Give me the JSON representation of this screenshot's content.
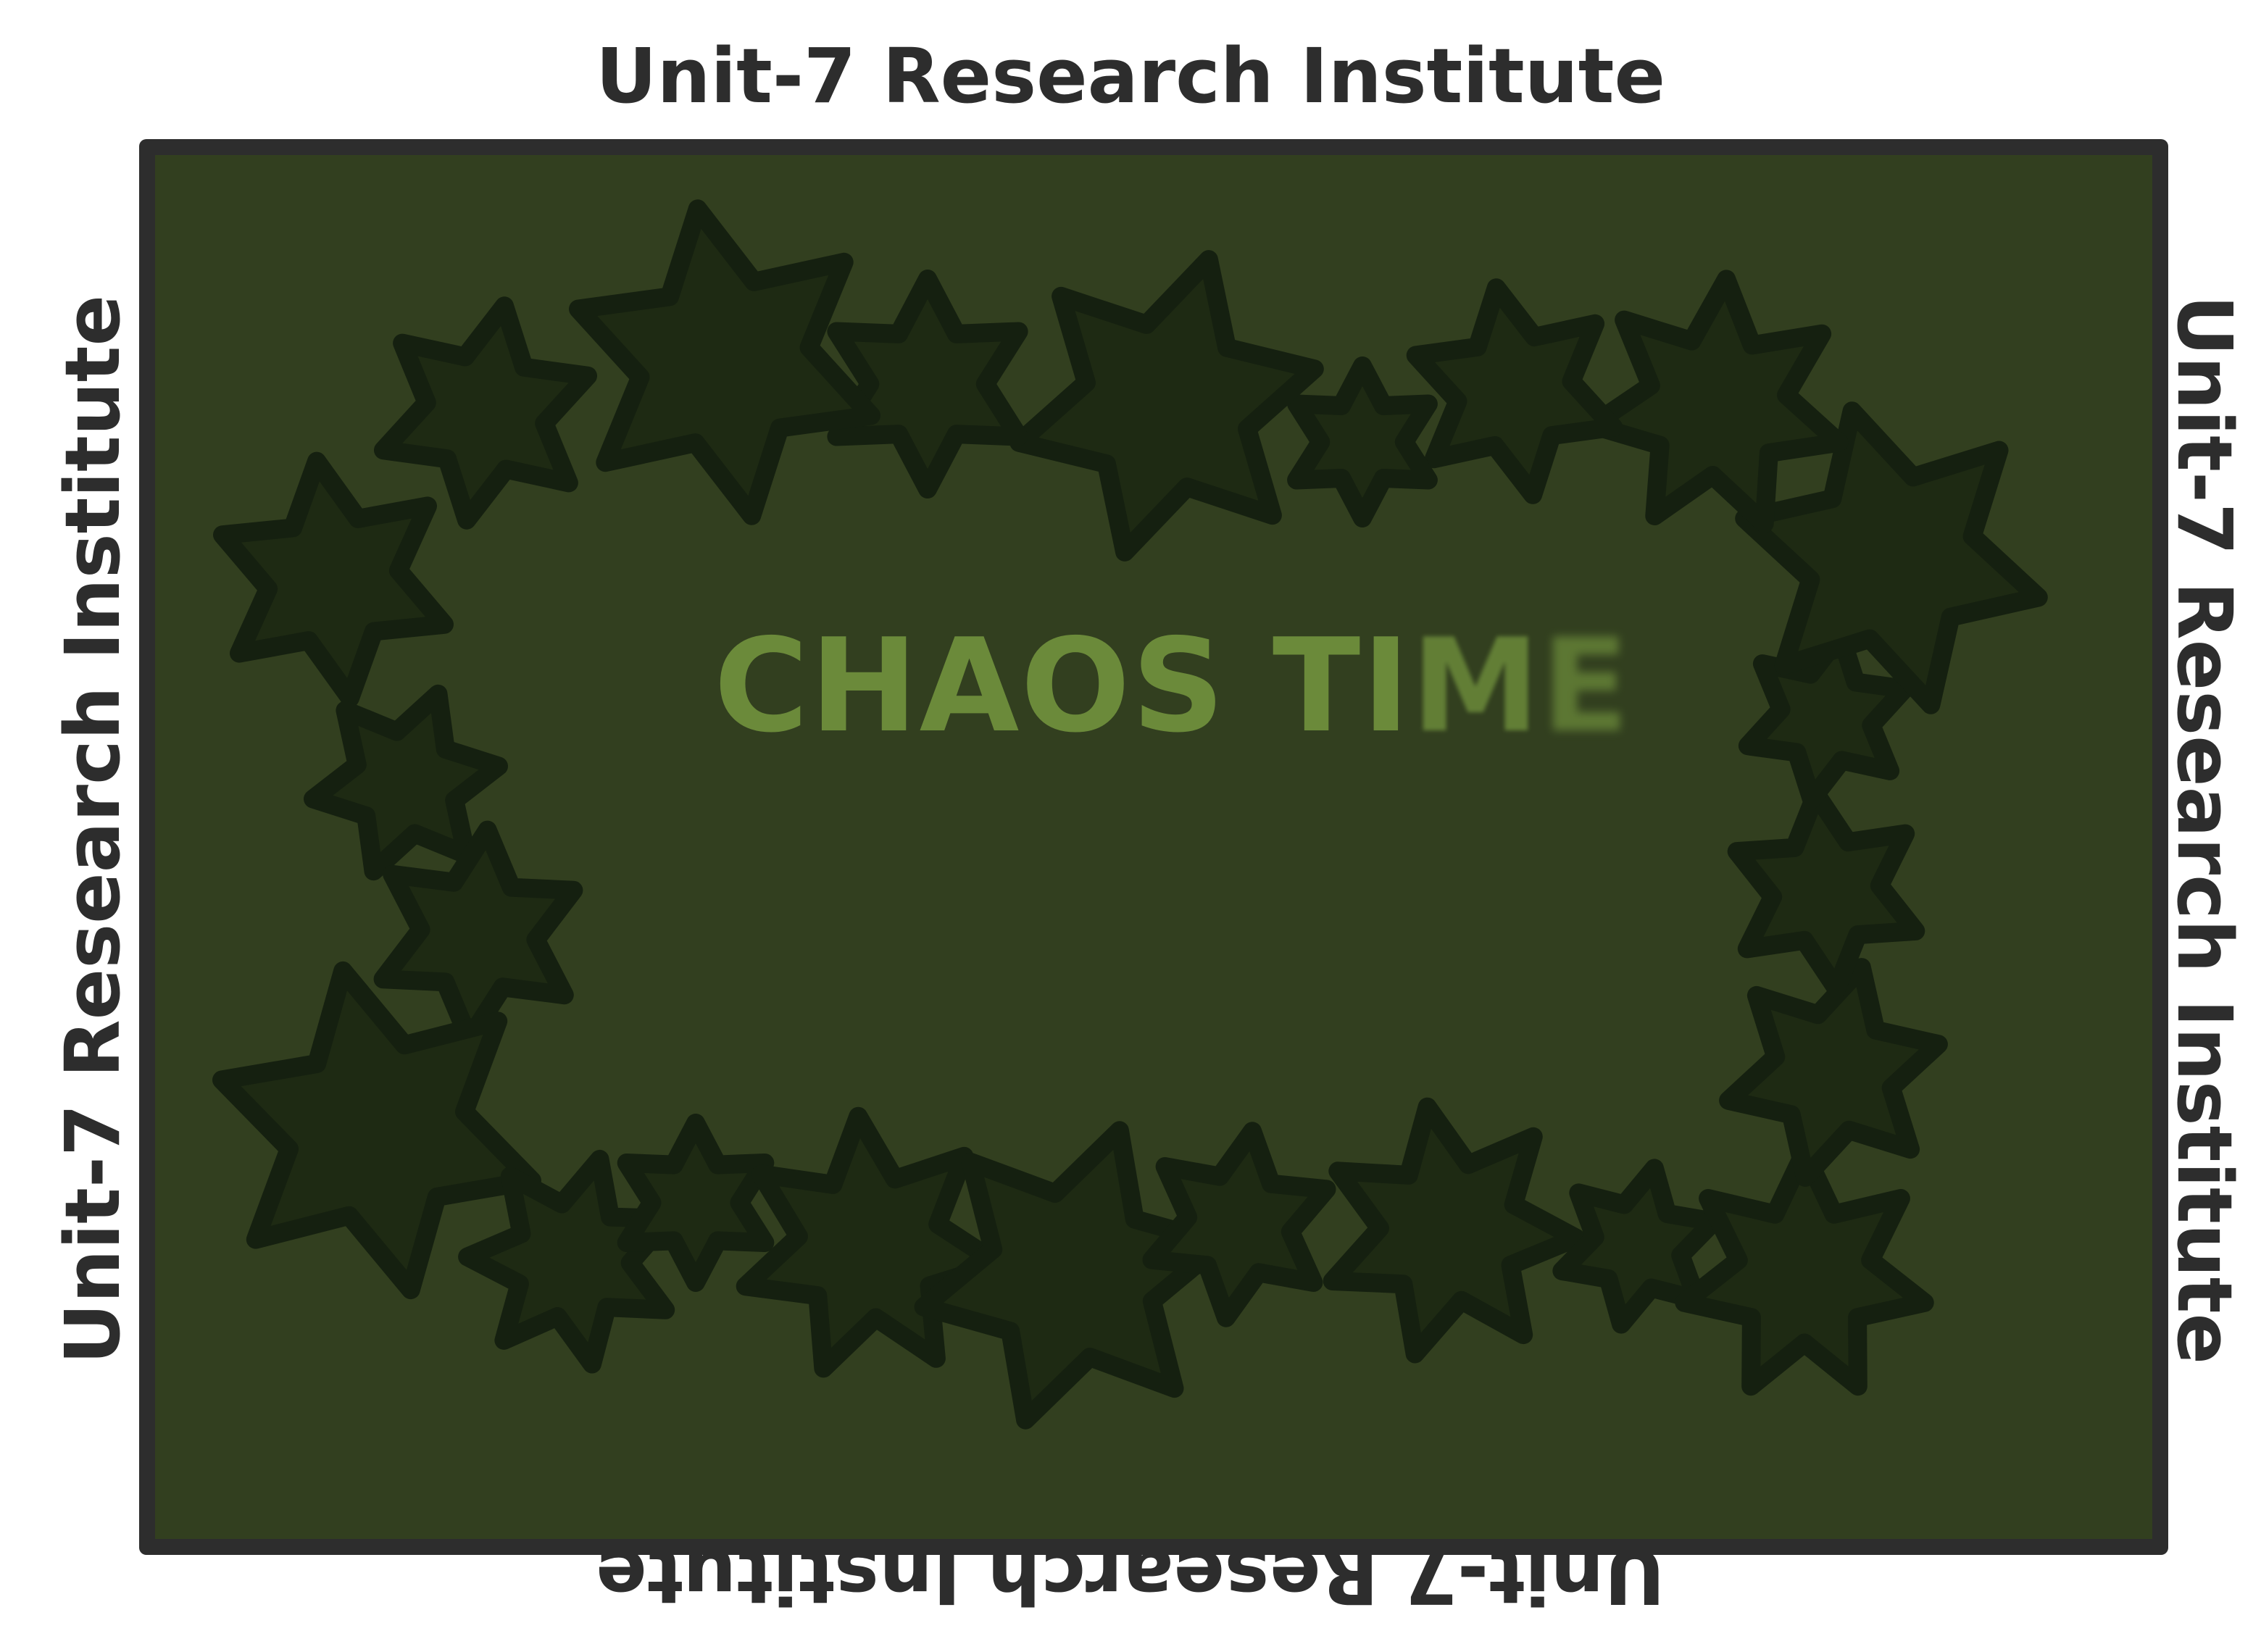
{
  "border_label": "Unit-7 Research Institute",
  "playmat": {
    "title_a": "CHAOS ",
    "title_b": "TI",
    "title_c": "M",
    "title_d": "E"
  },
  "colors": {
    "frame": "#2d2d2d",
    "mat": "#323f1f",
    "star_fill": "#1e2a13",
    "star_stroke": "#152010",
    "title": "#6b8a3a"
  },
  "decoration": {
    "motif": "star-icon"
  }
}
